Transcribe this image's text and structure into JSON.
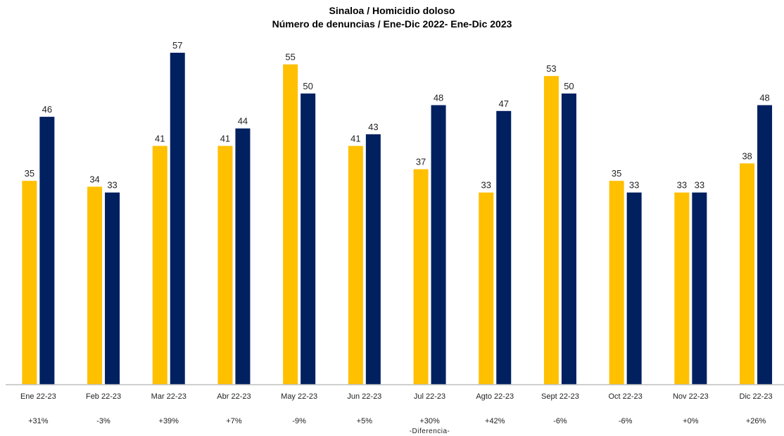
{
  "chart_data": {
    "type": "bar",
    "title": "Sinaloa / Homicidio doloso",
    "subtitle": "Número de denuncias  / Ene-Dic 2022- Ene-Dic 2023",
    "xlabel": "",
    "ylabel": "",
    "ylim": [
      0,
      57
    ],
    "grid": false,
    "legend": "none",
    "categories": [
      "Ene 22-23",
      "Feb 22-23",
      "Mar 22-23",
      "Abr 22-23",
      "May 22-23",
      "Jun 22-23",
      "Jul 22-23",
      "Agto 22-23",
      "Sept 22-23",
      "Oct 22-23",
      "Nov 22-23",
      "Dic 22-23"
    ],
    "series": [
      {
        "values": [
          35,
          34,
          41,
          41,
          55,
          41,
          37,
          33,
          53,
          35,
          33,
          38
        ]
      },
      {
        "values": [
          46,
          33,
          57,
          44,
          50,
          43,
          48,
          47,
          50,
          33,
          33,
          48
        ]
      }
    ],
    "differences": [
      "+31%",
      "-3%",
      "+39%",
      "+7%",
      "-9%",
      "+5%",
      "+30%",
      "+42%",
      "-6%",
      "-6%",
      "+0%",
      "+26%"
    ],
    "differences_note": "-Diferencia-"
  },
  "colors": {
    "series_2022": "#FFC000",
    "series_2023": "#002060",
    "axis": "#BFBFBF"
  }
}
